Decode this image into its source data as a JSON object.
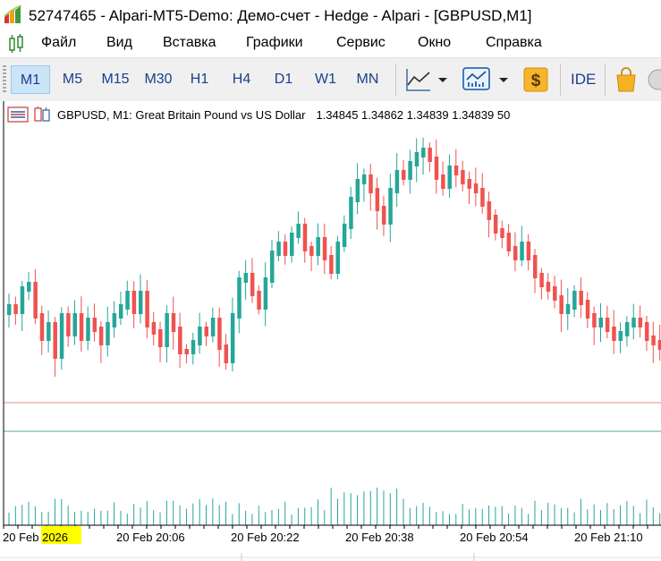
{
  "window": {
    "title": "52747465 - Alpari-MT5-Demo: Демо-счет - Hedge - Alpari - [GBPUSD,M1]"
  },
  "menu": {
    "items": [
      "Файл",
      "Вид",
      "Вставка",
      "Графики",
      "Сервис",
      "Окно",
      "Справка"
    ]
  },
  "toolbar": {
    "timeframes": [
      "M1",
      "M5",
      "M15",
      "M30",
      "H1",
      "H4",
      "D1",
      "W1",
      "MN"
    ],
    "active_timeframe": "M1",
    "ide_label": "IDE",
    "icons": [
      "line-chart-icon",
      "indicators-icon",
      "dollar-icon",
      "market-bag-icon"
    ]
  },
  "chart": {
    "symbol_label": "GBPUSD, M1:  Great Britain Pound vs US Dollar",
    "ohlc_text": "1.34845 1.34862 1.34839 1.34839  50",
    "x_labels": [
      "20 Feb 2026",
      "20 Feb 20:06",
      "20 Feb 20:22",
      "20 Feb 20:38",
      "20 Feb 20:54",
      "20 Feb 21:10"
    ],
    "highlighted_label_part": "2026",
    "bull_color": "#26a69a",
    "bear_color": "#ef5350",
    "bid_line_color": "#e0908e",
    "ask_line_color": "#5aa898",
    "highlight_color": "#ffff00"
  }
}
